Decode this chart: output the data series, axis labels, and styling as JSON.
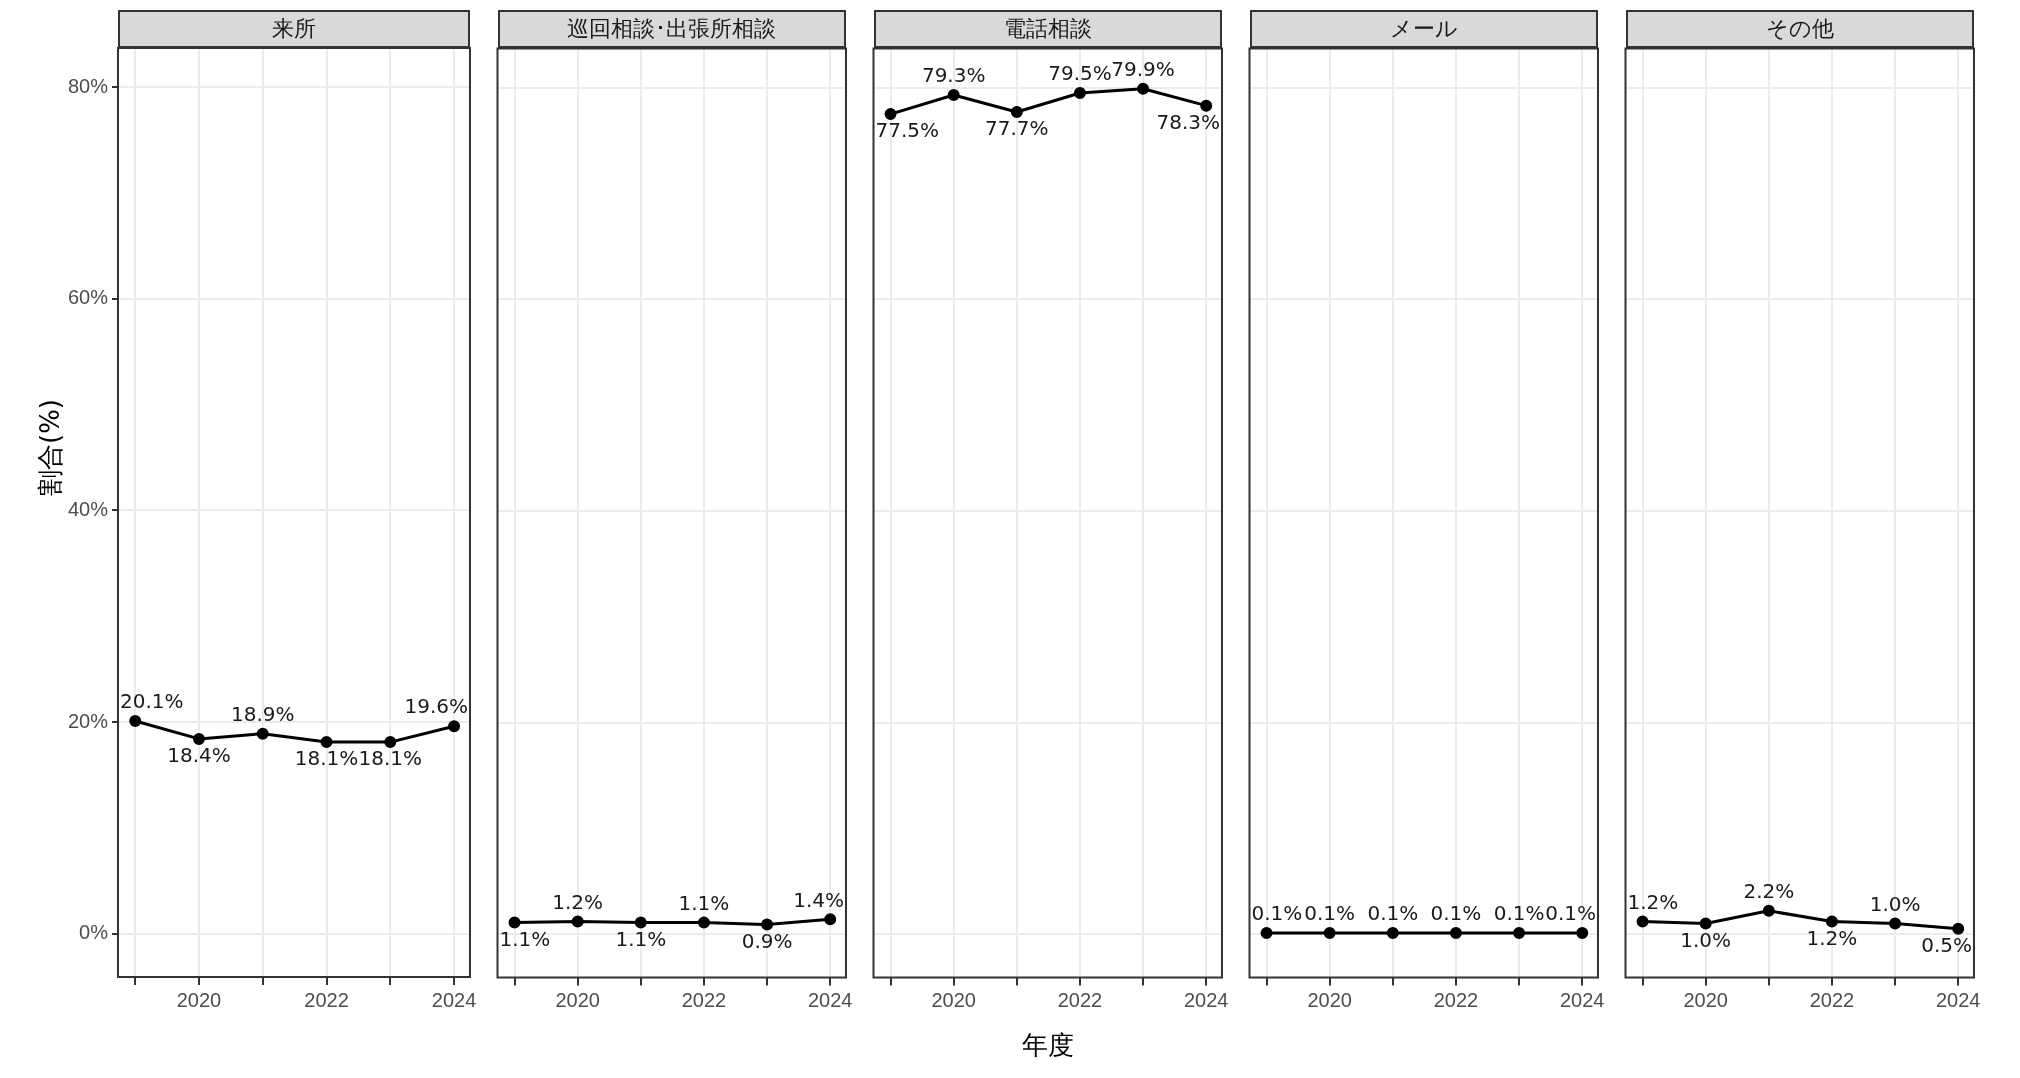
{
  "chart_data": [
    {
      "type": "line",
      "title": "来所",
      "ylabel": "割合(%)",
      "x": [
        2019,
        2020,
        2021,
        2022,
        2023,
        2024
      ],
      "values": [
        20.1,
        18.4,
        18.9,
        18.1,
        18.1,
        19.6
      ],
      "value_labels": [
        "20.1%",
        "18.4%",
        "18.9%",
        "18.1%",
        "18.1%",
        "19.6%"
      ],
      "color": "#000000",
      "marker": "circle",
      "line_style": "solid",
      "grid": true,
      "legend": false,
      "xlim": [
        2018.73,
        2024.25
      ],
      "xticks": [
        {
          "value": 2019,
          "label": null
        },
        2020,
        {
          "value": 2021,
          "label": null
        },
        2022,
        {
          "value": 2023,
          "label": null
        },
        2024
      ],
      "ylim": [
        -4.1,
        83.7
      ],
      "yticks": [
        {
          "value": 0,
          "label": "0%"
        },
        {
          "value": 20,
          "label": "20%"
        },
        {
          "value": 40,
          "label": "40%"
        },
        {
          "value": 60,
          "label": "60%"
        },
        {
          "value": 80,
          "label": "80%"
        }
      ]
    },
    {
      "type": "line",
      "title": "巡回相談･出張所相談",
      "x": [
        2019,
        2020,
        2021,
        2022,
        2023,
        2024
      ],
      "values": [
        1.1,
        1.2,
        1.1,
        1.1,
        0.9,
        1.4
      ],
      "value_labels": [
        "1.1%",
        "1.2%",
        "1.1%",
        "1.1%",
        "0.9%",
        "1.4%"
      ],
      "color": "#000000",
      "marker": "circle",
      "line_style": "solid",
      "grid": true,
      "legend": false,
      "tick_labels": "x",
      "xlim": [
        2018.73,
        2024.25
      ],
      "xticks": [
        {
          "value": 2019,
          "label": null
        },
        2020,
        {
          "value": 2021,
          "label": null
        },
        2022,
        {
          "value": 2023,
          "label": null
        },
        2024
      ],
      "ylim": [
        -4.1,
        83.7
      ],
      "yticks": [
        0,
        20,
        40,
        60,
        80
      ]
    },
    {
      "type": "line",
      "title": "電話相談",
      "xlabel": "年度",
      "x": [
        2019,
        2020,
        2021,
        2022,
        2023,
        2024
      ],
      "values": [
        77.5,
        79.3,
        77.7,
        79.5,
        79.9,
        78.3
      ],
      "value_labels": [
        "77.5%",
        "79.3%",
        "77.7%",
        "79.5%",
        "79.9%",
        "78.3%"
      ],
      "color": "#000000",
      "marker": "circle",
      "line_style": "solid",
      "grid": true,
      "legend": false,
      "tick_labels": "x",
      "xlim": [
        2018.73,
        2024.25
      ],
      "xticks": [
        {
          "value": 2019,
          "label": null
        },
        2020,
        {
          "value": 2021,
          "label": null
        },
        2022,
        {
          "value": 2023,
          "label": null
        },
        2024
      ],
      "ylim": [
        -4.1,
        83.7
      ],
      "yticks": [
        0,
        20,
        40,
        60,
        80
      ]
    },
    {
      "type": "line",
      "title": "メール",
      "x": [
        2019,
        2020,
        2021,
        2022,
        2023,
        2024
      ],
      "values": [
        0.1,
        0.1,
        0.1,
        0.1,
        0.1,
        0.1
      ],
      "value_labels": [
        "0.1%",
        "0.1%",
        "0.1%",
        "0.1%",
        "0.1%",
        "0.1%"
      ],
      "color": "#000000",
      "marker": "circle",
      "line_style": "solid",
      "grid": true,
      "legend": false,
      "tick_labels": "x",
      "xlim": [
        2018.73,
        2024.25
      ],
      "xticks": [
        {
          "value": 2019,
          "label": null
        },
        2020,
        {
          "value": 2021,
          "label": null
        },
        2022,
        {
          "value": 2023,
          "label": null
        },
        2024
      ],
      "ylim": [
        -4.1,
        83.7
      ],
      "yticks": [
        0,
        20,
        40,
        60,
        80
      ]
    },
    {
      "type": "line",
      "title": "その他",
      "x": [
        2019,
        2020,
        2021,
        2022,
        2023,
        2024
      ],
      "values": [
        1.2,
        1.0,
        2.2,
        1.2,
        1.0,
        0.5
      ],
      "value_labels": [
        "1.2%",
        "1.0%",
        "2.2%",
        "1.2%",
        "1.0%",
        "0.5%"
      ],
      "color": "#000000",
      "marker": "circle",
      "line_style": "solid",
      "grid": true,
      "legend": false,
      "tick_labels": "x",
      "xlim": [
        2018.73,
        2024.25
      ],
      "xticks": [
        {
          "value": 2019,
          "label": null
        },
        2020,
        {
          "value": 2021,
          "label": null
        },
        2022,
        {
          "value": 2023,
          "label": null
        },
        2024
      ],
      "ylim": [
        -4.1,
        83.7
      ],
      "yticks": [
        0,
        20,
        40,
        60,
        80
      ]
    }
  ]
}
